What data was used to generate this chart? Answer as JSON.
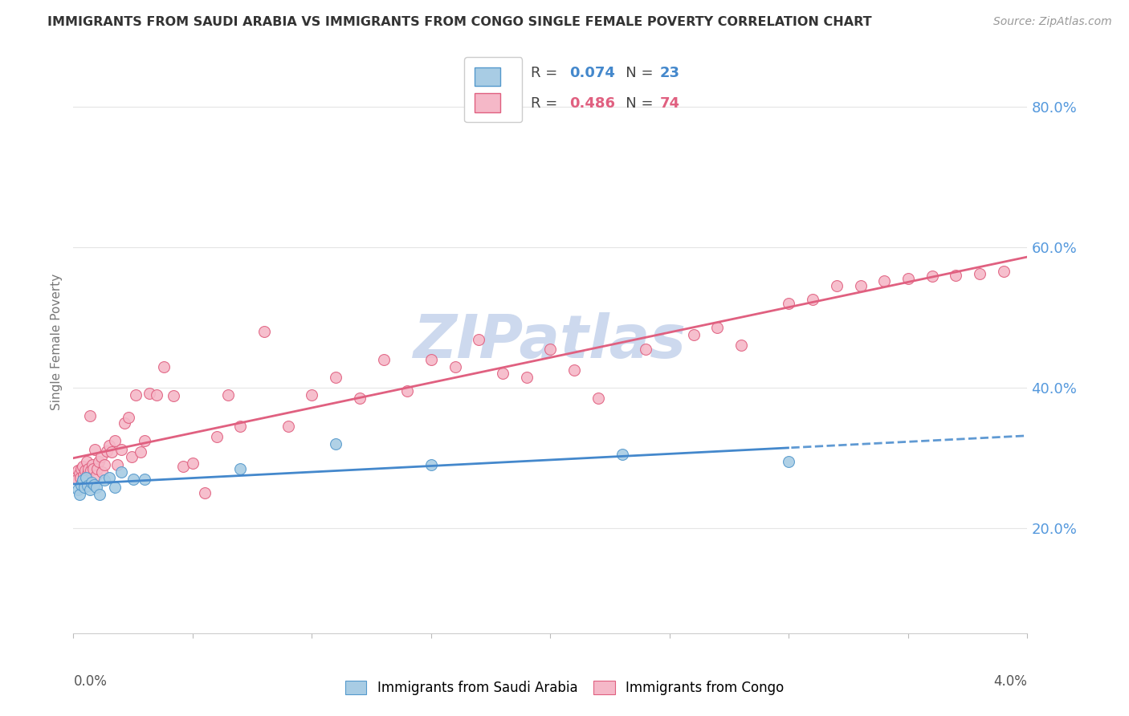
{
  "title": "IMMIGRANTS FROM SAUDI ARABIA VS IMMIGRANTS FROM CONGO SINGLE FEMALE POVERTY CORRELATION CHART",
  "source": "Source: ZipAtlas.com",
  "ylabel": "Single Female Poverty",
  "right_ytick_vals": [
    0.2,
    0.4,
    0.6,
    0.8
  ],
  "right_ytick_labels": [
    "20.0%",
    "40.0%",
    "60.0%",
    "80.0%"
  ],
  "xlim": [
    0.0,
    0.04
  ],
  "ylim": [
    0.05,
    0.88
  ],
  "saudi_R": "0.074",
  "saudi_N": "23",
  "congo_R": "0.486",
  "congo_N": "74",
  "saudi_face_color": "#a8cce4",
  "saudi_edge_color": "#5599cc",
  "congo_face_color": "#f5b8c8",
  "congo_edge_color": "#e06080",
  "saudi_line_color": "#4488cc",
  "congo_line_color": "#e06080",
  "watermark": "ZIPatlas",
  "watermark_color": "#cdd9ee",
  "bg_color": "#ffffff",
  "grid_color": "#e5e5e5",
  "title_color": "#333333",
  "right_axis_color": "#5599dd",
  "legend_box_color": "#ffffff",
  "legend_edge_color": "#cccccc",
  "saudi_x": [
    0.00018,
    0.00025,
    0.00032,
    0.00038,
    0.00045,
    0.00052,
    0.0006,
    0.00068,
    0.00075,
    0.00085,
    0.00095,
    0.0011,
    0.0013,
    0.0015,
    0.00175,
    0.002,
    0.0025,
    0.003,
    0.007,
    0.011,
    0.015,
    0.023,
    0.03
  ],
  "saudi_y": [
    0.255,
    0.248,
    0.262,
    0.268,
    0.258,
    0.272,
    0.26,
    0.255,
    0.265,
    0.262,
    0.258,
    0.248,
    0.268,
    0.272,
    0.258,
    0.28,
    0.27,
    0.27,
    0.285,
    0.32,
    0.29,
    0.305,
    0.295
  ],
  "congo_x": [
    0.00015,
    0.0002,
    0.00025,
    0.00028,
    0.00032,
    0.00035,
    0.0004,
    0.00042,
    0.00048,
    0.00055,
    0.00058,
    0.00062,
    0.00068,
    0.00072,
    0.00078,
    0.00082,
    0.0009,
    0.00095,
    0.001,
    0.00108,
    0.00115,
    0.0012,
    0.0013,
    0.0014,
    0.0015,
    0.0016,
    0.00175,
    0.00185,
    0.002,
    0.00215,
    0.0023,
    0.00245,
    0.0026,
    0.0028,
    0.003,
    0.0032,
    0.0035,
    0.0038,
    0.0042,
    0.0046,
    0.005,
    0.0055,
    0.006,
    0.0065,
    0.007,
    0.008,
    0.009,
    0.01,
    0.011,
    0.012,
    0.013,
    0.014,
    0.015,
    0.016,
    0.017,
    0.018,
    0.019,
    0.02,
    0.021,
    0.022,
    0.024,
    0.026,
    0.027,
    0.028,
    0.03,
    0.031,
    0.032,
    0.033,
    0.034,
    0.035,
    0.036,
    0.037,
    0.038,
    0.039
  ],
  "congo_y": [
    0.27,
    0.282,
    0.278,
    0.272,
    0.285,
    0.265,
    0.288,
    0.275,
    0.282,
    0.295,
    0.278,
    0.285,
    0.36,
    0.282,
    0.29,
    0.285,
    0.312,
    0.275,
    0.285,
    0.295,
    0.302,
    0.28,
    0.29,
    0.31,
    0.318,
    0.308,
    0.325,
    0.29,
    0.312,
    0.35,
    0.358,
    0.302,
    0.39,
    0.308,
    0.325,
    0.392,
    0.39,
    0.43,
    0.388,
    0.288,
    0.292,
    0.25,
    0.33,
    0.39,
    0.345,
    0.48,
    0.345,
    0.39,
    0.415,
    0.385,
    0.44,
    0.395,
    0.44,
    0.43,
    0.468,
    0.42,
    0.415,
    0.455,
    0.425,
    0.385,
    0.455,
    0.475,
    0.485,
    0.46,
    0.52,
    0.525,
    0.545,
    0.545,
    0.552,
    0.555,
    0.558,
    0.56,
    0.562,
    0.565
  ]
}
